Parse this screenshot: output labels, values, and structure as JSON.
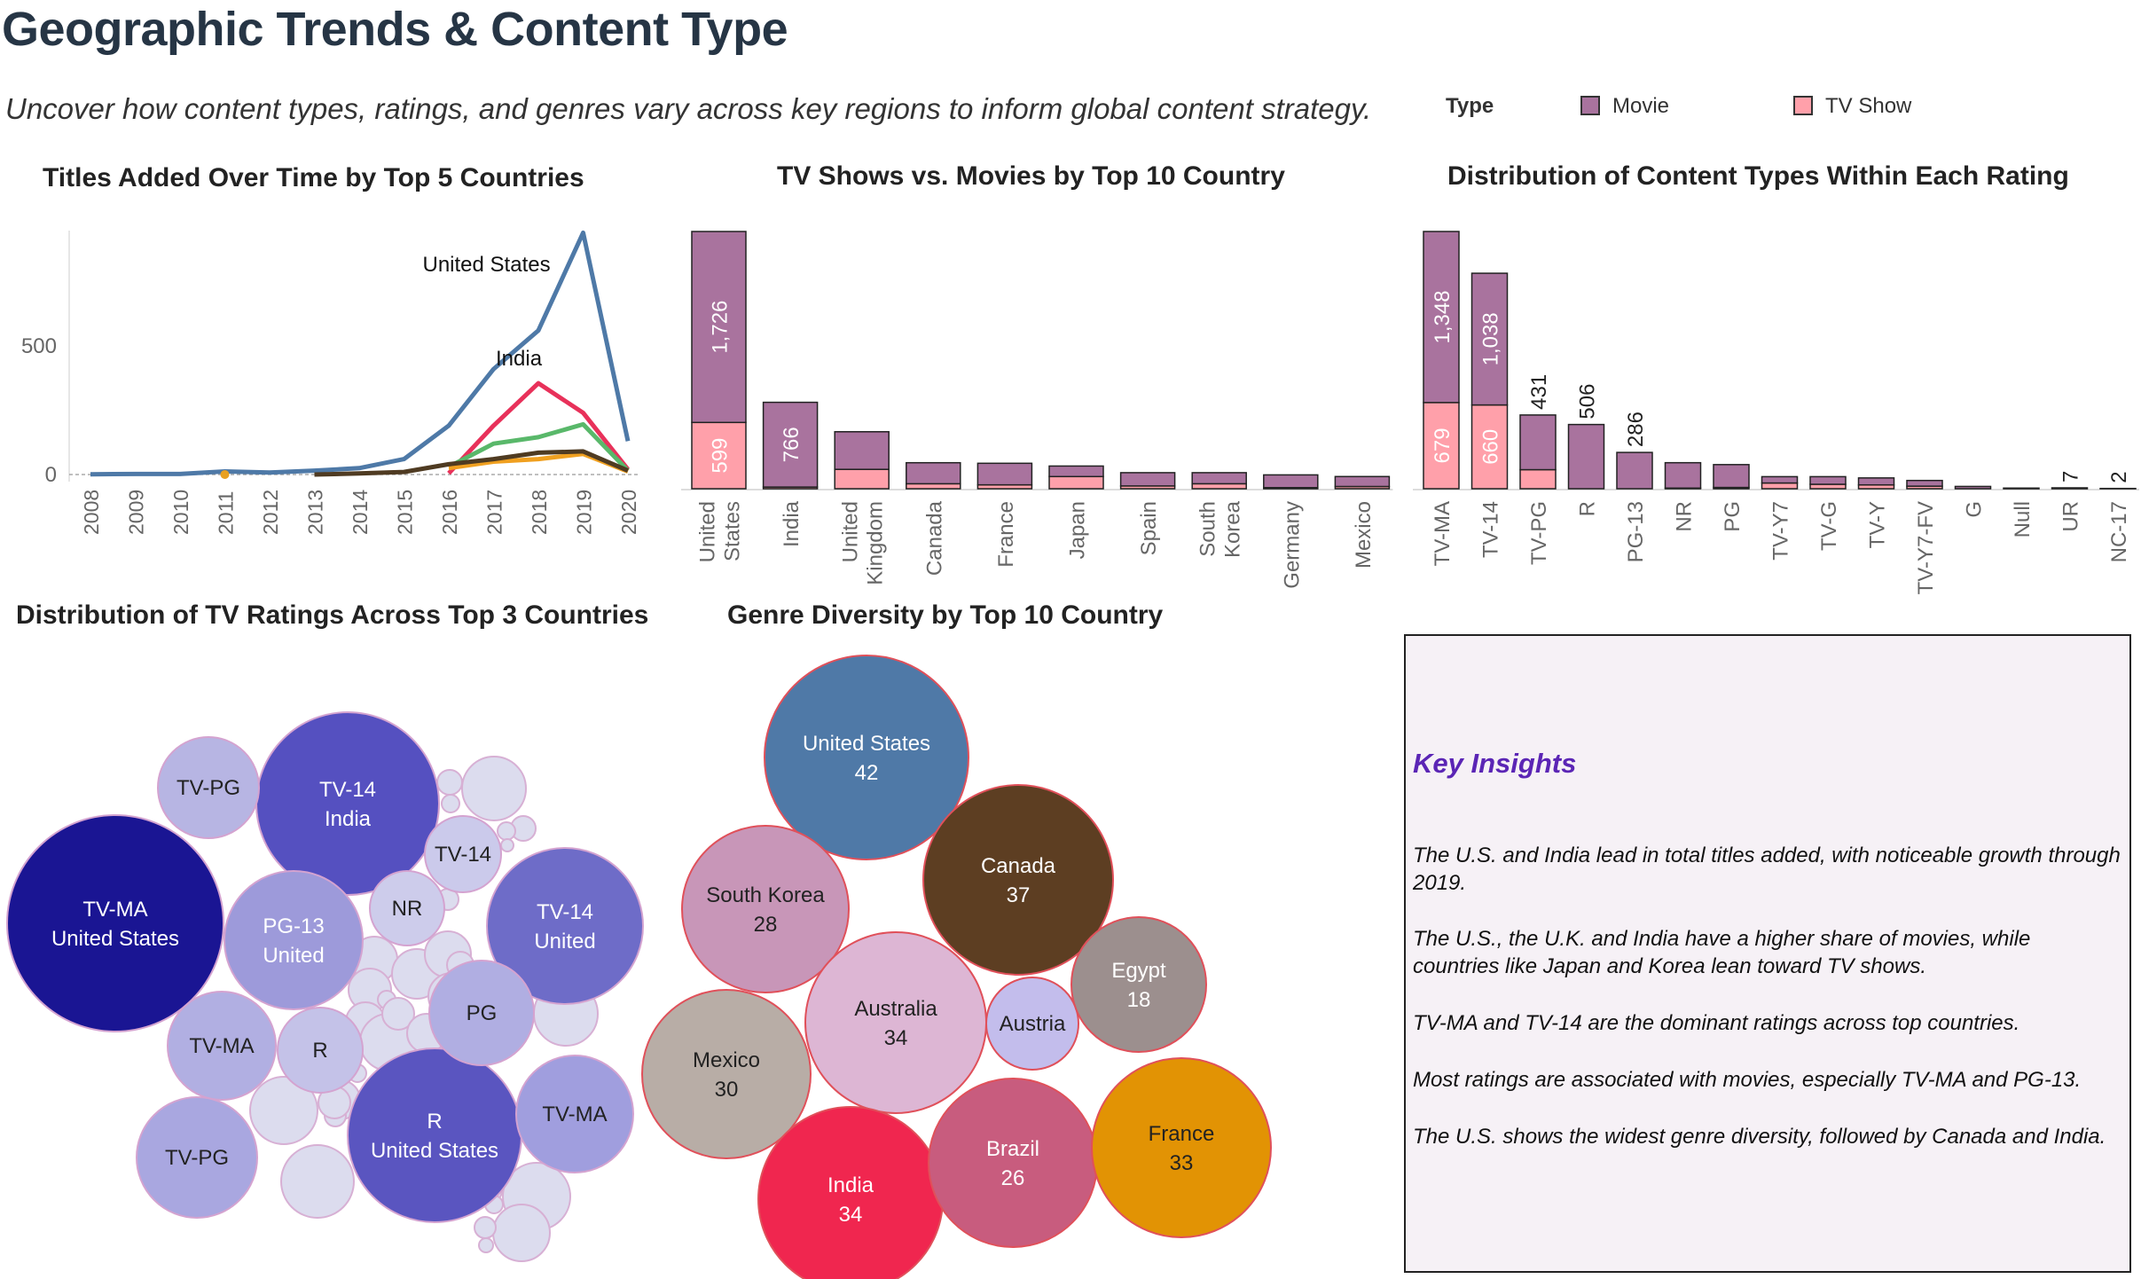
{
  "header": {
    "title": "Geographic Trends & Content Type",
    "subtitle": "Uncover how content types, ratings, and genres vary across key regions to inform global content strategy."
  },
  "legend": {
    "title": "Type",
    "items": [
      {
        "label": "Movie",
        "color": "#a9739e"
      },
      {
        "label": "TV Show",
        "color": "#ffa0aa"
      }
    ]
  },
  "insights": {
    "heading": "Key Insights",
    "items": [
      "The U.S. and India lead in total titles added, with noticeable growth through 2019.",
      "The U.S., the U.K. and India have a higher share of movies, while countries like Japan and Korea lean toward TV shows.",
      "TV-MA and TV-14 are the dominant ratings across top countries.",
      "Most ratings are associated with movies, especially TV-MA and PG-13.",
      "The U.S. shows the widest genre diversity, followed by Canada and India."
    ]
  },
  "chart_data": [
    {
      "id": "line",
      "type": "line",
      "title": "Titles Added Over Time by Top 5 Countries",
      "x": [
        "2008",
        "2009",
        "2010",
        "2011",
        "2012",
        "2013",
        "2014",
        "2015",
        "2016",
        "2017",
        "2018",
        "2019",
        "2020"
      ],
      "yticks": [
        0,
        500
      ],
      "ylim": [
        0,
        950
      ],
      "series": [
        {
          "name": "United States",
          "color": "#4e79a7",
          "values": [
            1,
            2,
            2,
            12,
            8,
            15,
            25,
            60,
            190,
            410,
            560,
            940,
            130
          ],
          "label_at": 9
        },
        {
          "name": "India",
          "color": "#e8315a",
          "values": [
            null,
            null,
            null,
            null,
            null,
            null,
            null,
            null,
            5,
            190,
            355,
            240,
            20
          ],
          "label_at": 10
        },
        {
          "color": "#59b86a",
          "values": [
            null,
            null,
            null,
            null,
            null,
            null,
            null,
            null,
            30,
            120,
            145,
            195,
            15
          ]
        },
        {
          "color": "#f0a020",
          "values": [
            null,
            null,
            null,
            null,
            null,
            null,
            null,
            null,
            25,
            50,
            60,
            80,
            12
          ]
        },
        {
          "color": "#4f3b22",
          "values": [
            null,
            null,
            null,
            null,
            null,
            0,
            4,
            10,
            40,
            60,
            85,
            90,
            15
          ]
        }
      ],
      "points": [
        {
          "x": "2011",
          "y": 0,
          "color": "#e8a020"
        }
      ]
    },
    {
      "id": "countries",
      "type": "bar",
      "title": "TV Shows vs. Movies by Top 10 Country",
      "categories": [
        "United States",
        "India",
        "United Kingdom",
        "Canada",
        "France",
        "Japan",
        "Spain",
        "South Korea",
        "Germany",
        "Mexico"
      ],
      "ymax": 2325,
      "series": [
        {
          "name": "TV Show",
          "values": [
            599,
            15,
            175,
            45,
            35,
            110,
            25,
            45,
            10,
            20
          ]
        },
        {
          "name": "Movie",
          "values": [
            1726,
            766,
            340,
            190,
            195,
            95,
            120,
            100,
            115,
            90
          ]
        }
      ],
      "labels": {
        "TV Show": [
          599,
          null,
          null,
          null,
          null,
          null,
          null,
          null,
          null,
          null
        ],
        "Movie": [
          1726,
          766,
          null,
          null,
          null,
          null,
          null,
          null,
          null,
          null
        ]
      }
    },
    {
      "id": "ratings",
      "type": "bar",
      "title": "Distribution of Content Types Within Each Rating",
      "categories": [
        "TV-MA",
        "TV-14",
        "TV-PG",
        "R",
        "PG-13",
        "NR",
        "PG",
        "TV-Y7",
        "TV-G",
        "TV-Y",
        "TV-Y7-FV",
        "G",
        "Null",
        "UR",
        "NC-17"
      ],
      "ymax": 2027,
      "series": [
        {
          "name": "TV Show",
          "values": [
            679,
            660,
            150,
            0,
            0,
            5,
            10,
            45,
            35,
            30,
            20,
            0,
            0,
            0,
            0
          ]
        },
        {
          "name": "Movie",
          "values": [
            1348,
            1038,
            431,
            506,
            286,
            200,
            180,
            50,
            60,
            55,
            45,
            18,
            5,
            7,
            2
          ]
        }
      ],
      "labels": {
        "TV Show": [
          679,
          660,
          null,
          null,
          null,
          null,
          null,
          null,
          null,
          null,
          null,
          null,
          null,
          null,
          null
        ],
        "Movie": [
          1348,
          1038,
          431,
          506,
          286,
          null,
          null,
          null,
          null,
          null,
          null,
          null,
          null,
          7,
          2
        ]
      }
    },
    {
      "id": "tv-ratings",
      "type": "bubble",
      "title": "Distribution of TV Ratings Across Top 3 Countries",
      "bubbles": [
        {
          "label": "TV-MA",
          "sub": "United States",
          "color": "#1a1593"
        },
        {
          "label": "TV-14",
          "sub": "India",
          "color": "#5550c0"
        },
        {
          "label": "TV-14",
          "sub": "United",
          "color": "#6e6cc8"
        },
        {
          "label": "R",
          "sub": "United States",
          "color": "#5a55c0"
        },
        {
          "label": "PG-13",
          "sub": "United",
          "color": "#9d9ada"
        },
        {
          "label": "TV-PG",
          "color": "#b7b5e3"
        },
        {
          "label": "TV-14",
          "color": "#cbcaeb"
        },
        {
          "label": "NR",
          "color": "#cdcceb"
        },
        {
          "label": "PG",
          "color": "#b0aee2"
        },
        {
          "label": "TV-MA",
          "color": "#b1afe2"
        },
        {
          "label": "R",
          "color": "#c4c2e8"
        },
        {
          "label": "TV-MA",
          "color": "#a09ede"
        },
        {
          "label": "TV-PG",
          "color": "#a9a7e0"
        }
      ]
    },
    {
      "id": "genres",
      "type": "bubble",
      "title": "Genre Diversity by Top 10 Country",
      "bubbles": [
        {
          "label": "United States",
          "value": 42,
          "color": "#4f79a7"
        },
        {
          "label": "Canada",
          "value": 37,
          "color": "#5d3e22"
        },
        {
          "label": "South Korea",
          "value": 28,
          "color": "#c896b8"
        },
        {
          "label": "Australia",
          "value": 34,
          "color": "#ddb6d4"
        },
        {
          "label": "Austria",
          "value": null,
          "color": "#c3bdec"
        },
        {
          "label": "Egypt",
          "value": 18,
          "color": "#9c8f8e"
        },
        {
          "label": "Mexico",
          "value": 30,
          "color": "#b8ada6"
        },
        {
          "label": "India",
          "value": 34,
          "color": "#f0264f"
        },
        {
          "label": "Brazil",
          "value": 26,
          "color": "#c85c7e"
        },
        {
          "label": "France",
          "value": 33,
          "color": "#e29304"
        }
      ]
    }
  ]
}
